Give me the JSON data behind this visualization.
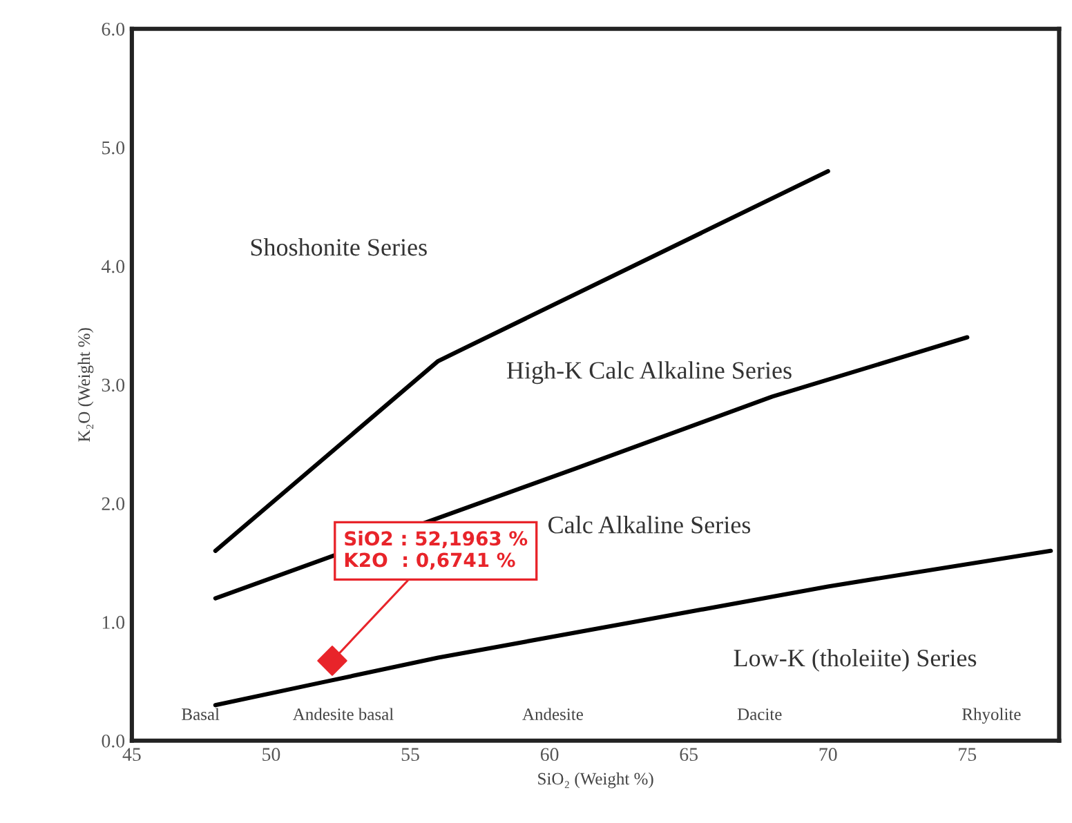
{
  "chart_data": {
    "type": "line",
    "xlabel": "SiO₂ (Weight %)",
    "ylabel": "K₂O (Weight %)",
    "xlim": [
      45,
      78.3
    ],
    "ylim": [
      0,
      6
    ],
    "xticks": [
      45,
      50,
      55,
      60,
      65,
      70,
      75
    ],
    "yticks": [
      {
        "value": 0,
        "label": "0.0"
      },
      {
        "value": 1,
        "label": "1.0"
      },
      {
        "value": 2,
        "label": "2.0"
      },
      {
        "value": 3,
        "label": "3.0"
      },
      {
        "value": 4,
        "label": "4.0"
      },
      {
        "value": 5,
        "label": "5.0"
      },
      {
        "value": 6,
        "label": "6.0"
      }
    ],
    "grid": false,
    "legend": false,
    "series": [
      {
        "color": "#000000",
        "x": [
          48,
          52,
          56,
          63,
          70,
          78
        ],
        "values": [
          0.3,
          0.5,
          0.7,
          1.0,
          1.3,
          1.6
        ]
      },
      {
        "color": "#000000",
        "x": [
          48,
          61,
          68,
          75
        ],
        "values": [
          1.2,
          2.3,
          2.9,
          3.4
        ]
      },
      {
        "color": "#000000",
        "x": [
          48,
          56,
          70
        ],
        "values": [
          1.6,
          3.2,
          4.8
        ]
      },
      {
        "type": "scatter",
        "color": "#e8242a",
        "marker": "diamond",
        "x": [
          52.1963
        ],
        "values": [
          0.6741
        ]
      }
    ],
    "annotations": [
      {
        "text": "SiO2 : 52,1963 %\nK2O  : 0,6741 %",
        "x": 52.1963,
        "y": 0.6741
      },
      "Shoshonite Series",
      "High-K Calc Alkaline Series",
      "Calc Alkaline Series",
      "Low-K (tholeiite) Series",
      "Basal",
      "Andesite basal",
      "Andesite",
      "Dacite",
      "Rhyolite"
    ]
  }
}
